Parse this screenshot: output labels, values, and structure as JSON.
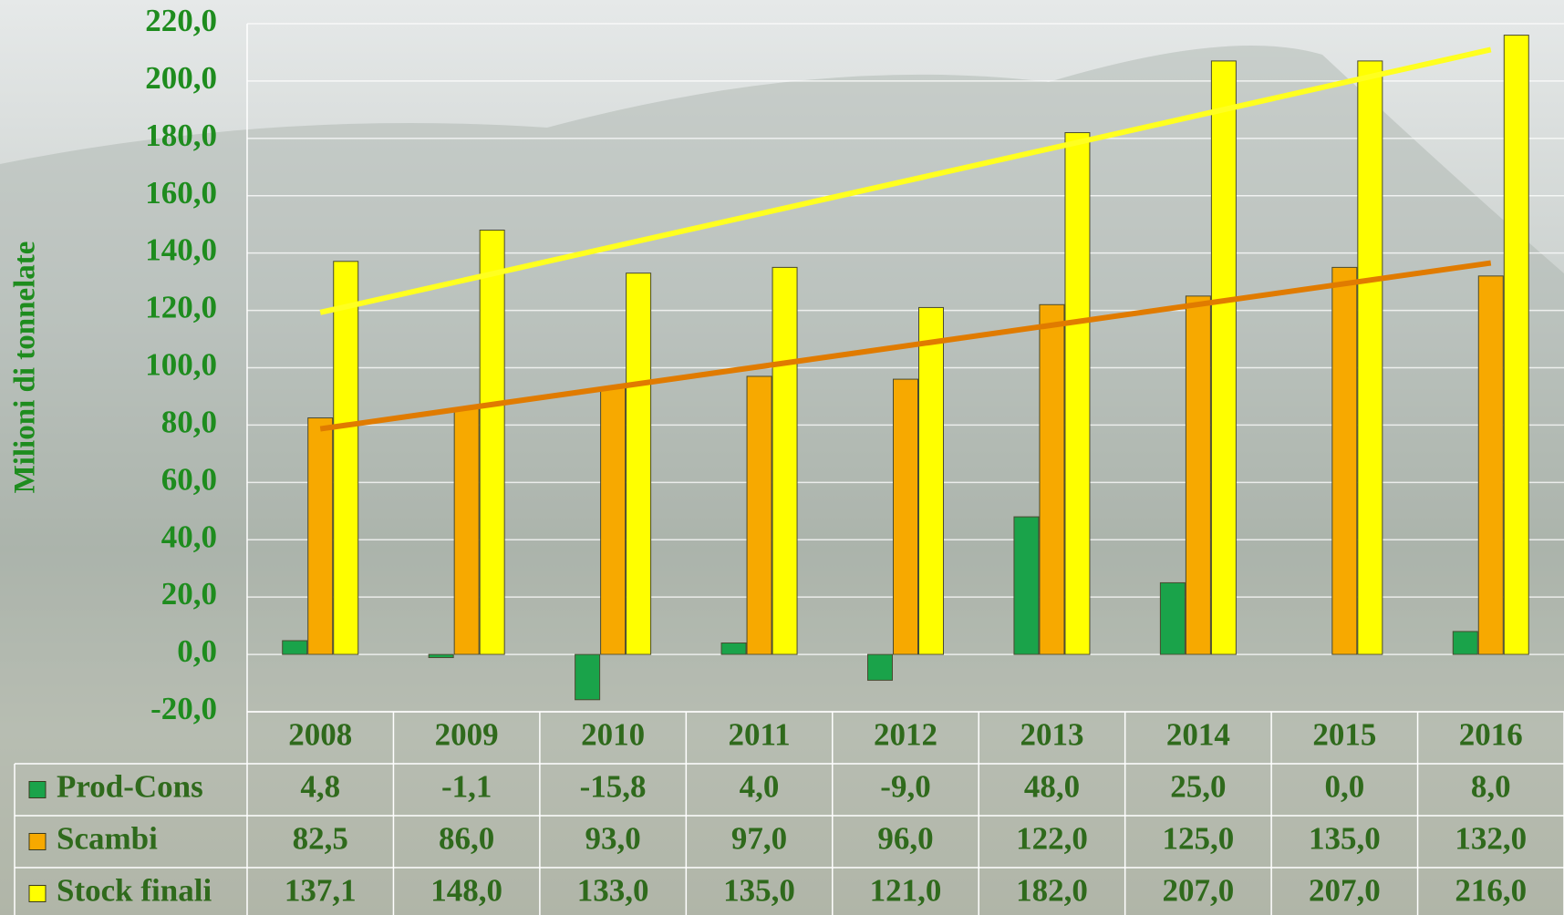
{
  "chart_data": {
    "type": "bar",
    "y_label": "Milioni di tonnelate",
    "categories": [
      "2008",
      "2009",
      "2010",
      "2011",
      "2012",
      "2013",
      "2014",
      "2015",
      "2016"
    ],
    "series": [
      {
        "name": "Prod-Cons",
        "color": "#1aa34a",
        "values": [
          4.8,
          -1.1,
          -15.8,
          4.0,
          -9.0,
          48.0,
          25.0,
          0.0,
          8.0
        ],
        "value_labels": [
          "4,8",
          "-1,1",
          "-15,8",
          "4,0",
          "-9,0",
          "48,0",
          "25,0",
          "0,0",
          "8,0"
        ]
      },
      {
        "name": "Scambi",
        "color": "#f7a900",
        "values": [
          82.5,
          86.0,
          93.0,
          97.0,
          96.0,
          122.0,
          125.0,
          135.0,
          132.0
        ],
        "value_labels": [
          "82,5",
          "86,0",
          "93,0",
          "97,0",
          "96,0",
          "122,0",
          "125,0",
          "135,0",
          "132,0"
        ],
        "trendline_color": "#e07b00"
      },
      {
        "name": "Stock finali",
        "color": "#ffff00",
        "values": [
          137.1,
          148.0,
          133.0,
          135.0,
          121.0,
          182.0,
          207.0,
          207.0,
          216.0
        ],
        "value_labels": [
          "137,1",
          "148,0",
          "133,0",
          "135,0",
          "121,0",
          "182,0",
          "207,0",
          "207,0",
          "216,0"
        ],
        "trendline_color": "#ffff20"
      }
    ],
    "ylim": [
      -20,
      220
    ],
    "yticks": [
      {
        "value": -20,
        "label": "-20,0"
      },
      {
        "value": 0,
        "label": "0,0"
      },
      {
        "value": 20,
        "label": "20,0"
      },
      {
        "value": 40,
        "label": "40,0"
      },
      {
        "value": 60,
        "label": "60,0"
      },
      {
        "value": 80,
        "label": "80,0"
      },
      {
        "value": 100,
        "label": "100,0"
      },
      {
        "value": 120,
        "label": "120,0"
      },
      {
        "value": 140,
        "label": "140,0"
      },
      {
        "value": 160,
        "label": "160,0"
      },
      {
        "value": 180,
        "label": "180,0"
      },
      {
        "value": 200,
        "label": "200,0"
      },
      {
        "value": 220,
        "label": "220,0"
      }
    ],
    "grid": true,
    "trendlines": true,
    "data_table": true
  }
}
